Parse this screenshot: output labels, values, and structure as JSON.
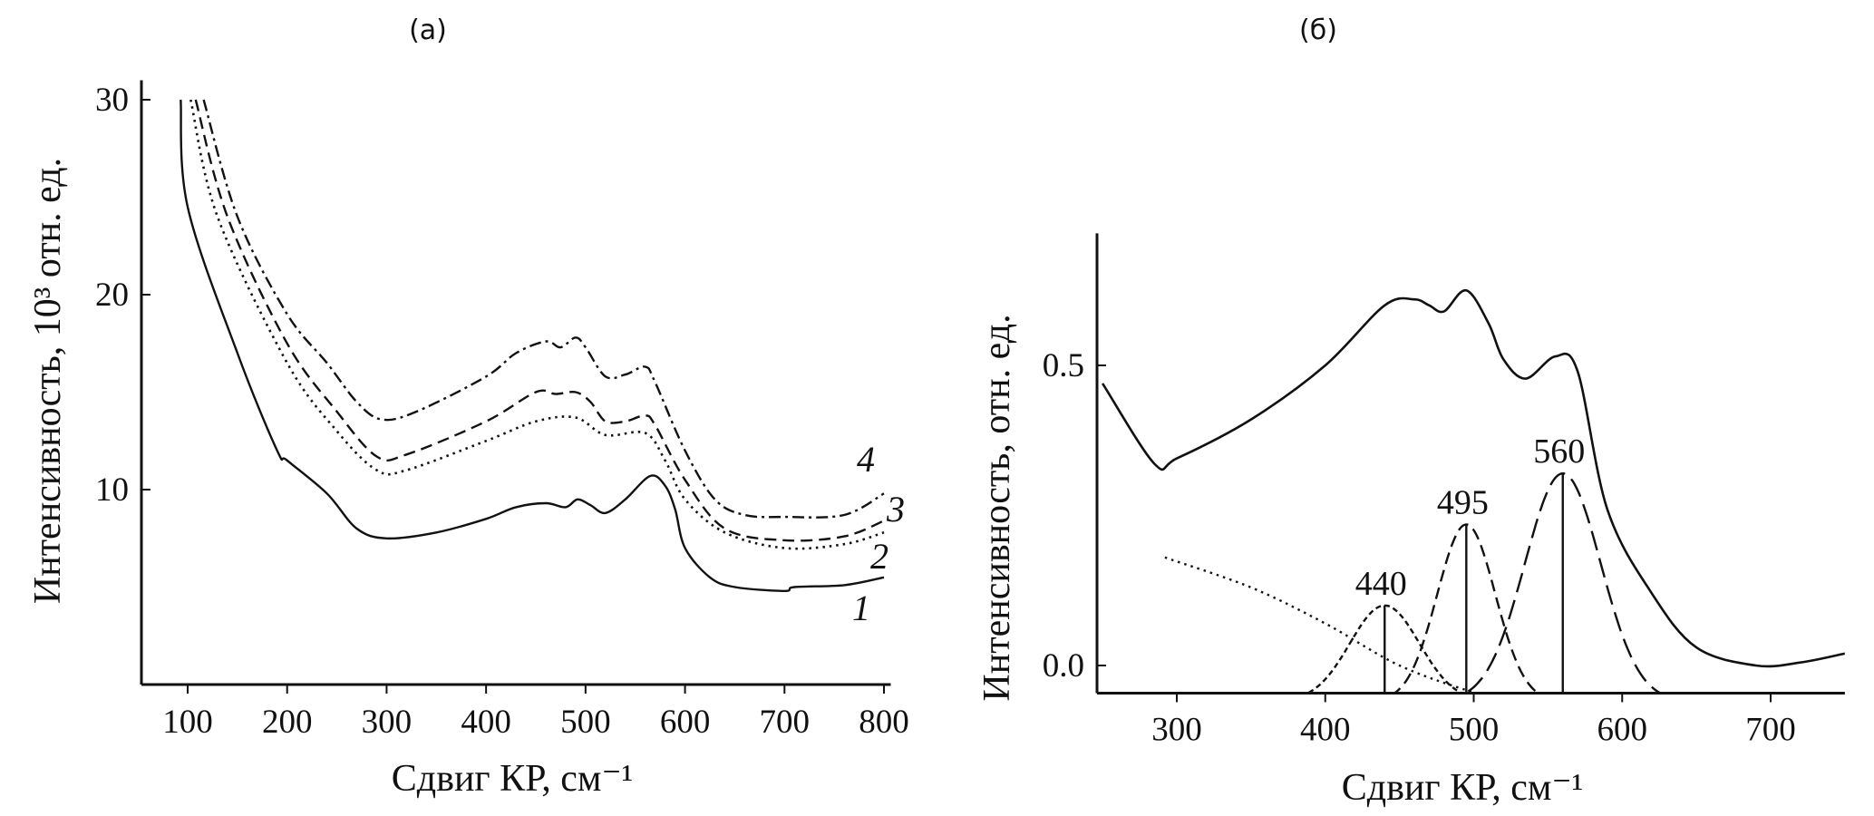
{
  "chart_data": [
    {
      "type": "line",
      "title": "(a)",
      "xlabel": "Сдвиг КР, см⁻¹",
      "ylabel": "Интенсивность, 10³ отн. ед.",
      "xlim": [
        53,
        805
      ],
      "ylim": [
        0,
        31
      ],
      "xticks": [
        100,
        200,
        300,
        400,
        500,
        600,
        700,
        800
      ],
      "yticks": [
        10,
        20,
        30
      ],
      "grid": false,
      "series": [
        {
          "name": "1",
          "style": "solid",
          "x": [
            93,
            100,
            150,
            190,
            200,
            240,
            270,
            300,
            350,
            400,
            430,
            460,
            480,
            492,
            505,
            520,
            540,
            565,
            580,
            590,
            600,
            625,
            650,
            700,
            710,
            760,
            800
          ],
          "y": [
            30,
            24.5,
            17,
            12,
            11.5,
            9.8,
            8.0,
            7.5,
            7.8,
            8.5,
            9.1,
            9.3,
            9.1,
            9.5,
            9.2,
            8.8,
            9.5,
            10.7,
            10.2,
            9.0,
            7.0,
            5.5,
            5.0,
            4.8,
            5.0,
            5.1,
            5.5
          ]
        },
        {
          "name": "2",
          "style": "dotted",
          "x": [
            103,
            130,
            200,
            250,
            290,
            320,
            400,
            450,
            490,
            520,
            560,
            580,
            600,
            640,
            700,
            760,
            800
          ],
          "y": [
            30,
            24,
            16.5,
            13,
            11,
            11,
            12.5,
            13.5,
            13.7,
            12.8,
            12.9,
            11.5,
            9.5,
            7.8,
            7.0,
            7.2,
            7.8
          ]
        },
        {
          "name": "3",
          "style": "dashed",
          "x": [
            108,
            140,
            200,
            250,
            290,
            320,
            400,
            450,
            470,
            490,
            505,
            520,
            540,
            560,
            570,
            600,
            640,
            700,
            760,
            800
          ],
          "y": [
            30,
            24,
            17.5,
            14,
            11.7,
            11.8,
            13.5,
            15.0,
            14.9,
            15.0,
            14.5,
            13.5,
            13.5,
            13.8,
            13.3,
            10.5,
            8.0,
            7.4,
            7.6,
            8.4
          ]
        },
        {
          "name": "4",
          "style": "dash-dot",
          "x": [
            116,
            150,
            200,
            240,
            270,
            295,
            330,
            400,
            430,
            460,
            475,
            490,
            500,
            520,
            540,
            560,
            570,
            600,
            630,
            660,
            700,
            760,
            800
          ],
          "y": [
            30,
            24,
            19,
            16.5,
            14.5,
            13.6,
            14,
            15.8,
            17,
            17.6,
            17.3,
            17.8,
            17.3,
            15.8,
            15.9,
            16.3,
            15.5,
            12,
            9.5,
            8.7,
            8.6,
            8.7,
            9.8
          ]
        }
      ]
    },
    {
      "type": "line",
      "title": "(б)",
      "xlabel": "Сдвиг КР, см⁻¹",
      "ylabel": "Интенсивность, отн. ед.",
      "xlim": [
        250,
        750
      ],
      "ylim": [
        -0.046,
        0.72
      ],
      "xticks": [
        300,
        400,
        500,
        600,
        700
      ],
      "yticks": [
        0.0,
        0.5
      ],
      "ytick_labels": [
        "0.0",
        "0.5"
      ],
      "grid": false,
      "spectrum": {
        "style": "solid",
        "x": [
          250,
          285,
          300,
          350,
          400,
          440,
          460,
          470,
          480,
          495,
          510,
          520,
          535,
          555,
          570,
          590,
          620,
          650,
          690,
          720,
          750
        ],
        "y": [
          0.47,
          0.336,
          0.345,
          0.41,
          0.5,
          0.6,
          0.61,
          0.6,
          0.59,
          0.625,
          0.57,
          0.51,
          0.478,
          0.515,
          0.49,
          0.26,
          0.12,
          0.03,
          0.0,
          0.005,
          0.02
        ]
      },
      "background": {
        "style": "dotted",
        "x": [
          292,
          350,
          400,
          450,
          500,
          525
        ],
        "y": [
          0.18,
          0.13,
          0.07,
          0.0,
          -0.045,
          -0.06
        ]
      },
      "peaks": [
        {
          "label": "440",
          "center": 440,
          "amplitude": 0.1,
          "fwhm": 55,
          "style": "short-dash"
        },
        {
          "label": "495",
          "center": 495,
          "amplitude": 0.235,
          "fwhm": 46,
          "style": "dashed"
        },
        {
          "label": "560",
          "center": 560,
          "amplitude": 0.32,
          "fwhm": 60,
          "style": "long-dash"
        }
      ]
    }
  ]
}
